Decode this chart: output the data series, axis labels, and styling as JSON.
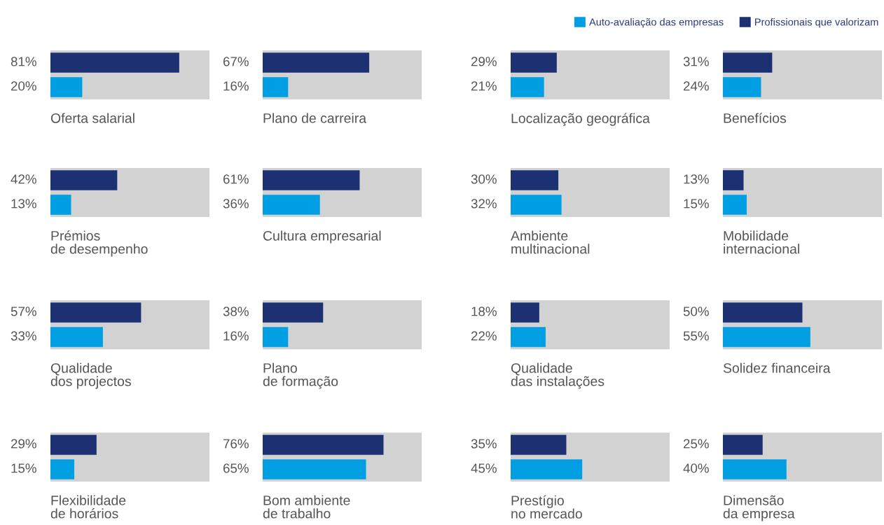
{
  "chart_data": [
    {
      "type": "bar",
      "orientation": "horizontal",
      "xlabel": "Oferta salarial",
      "categories": [
        null
      ],
      "xlim": [
        0,
        100
      ],
      "series": [
        {
          "color": "#1d3072",
          "values": [
            81
          ],
          "value_labels": [
            "81%"
          ]
        },
        {
          "color": "#009fe3",
          "values": [
            20
          ],
          "value_labels": [
            "20%"
          ]
        }
      ]
    },
    {
      "type": "bar",
      "orientation": "horizontal",
      "xlabel": "Plano de carreira",
      "categories": [
        null
      ],
      "xlim": [
        0,
        100
      ],
      "series": [
        {
          "color": "#1d3072",
          "values": [
            67
          ],
          "value_labels": [
            "67%"
          ]
        },
        {
          "color": "#009fe3",
          "values": [
            16
          ],
          "value_labels": [
            "16%"
          ]
        }
      ]
    },
    {
      "type": "bar",
      "orientation": "horizontal",
      "xlabel": "Localização geográfica",
      "categories": [
        null
      ],
      "xlim": [
        0,
        100
      ],
      "legend": "top right",
      "series": [
        {
          "name": "Profissionais que valorizam",
          "color": "#1d3072",
          "values": [
            29
          ],
          "value_labels": [
            "29%"
          ]
        },
        {
          "name": "Auto-avaliação das empresas",
          "color": "#009fe3",
          "values": [
            21
          ],
          "value_labels": [
            "21%"
          ]
        }
      ]
    },
    {
      "type": "bar",
      "orientation": "horizontal",
      "xlabel": "Benefícios",
      "categories": [
        null
      ],
      "xlim": [
        0,
        100
      ],
      "series": [
        {
          "color": "#1d3072",
          "values": [
            31
          ],
          "value_labels": [
            "31%"
          ]
        },
        {
          "color": "#009fe3",
          "values": [
            24
          ],
          "value_labels": [
            "24%"
          ]
        }
      ]
    },
    {
      "type": "bar",
      "orientation": "horizontal",
      "xlabel": "Prémios\nde desempenho",
      "categories": [
        null
      ],
      "xlim": [
        0,
        100
      ],
      "series": [
        {
          "color": "#1d3072",
          "values": [
            42
          ],
          "value_labels": [
            "42%"
          ]
        },
        {
          "color": "#009fe3",
          "values": [
            13
          ],
          "value_labels": [
            "13%"
          ]
        }
      ]
    },
    {
      "type": "bar",
      "orientation": "horizontal",
      "xlabel": "Cultura empresarial",
      "categories": [
        null
      ],
      "xlim": [
        0,
        100
      ],
      "series": [
        {
          "color": "#1d3072",
          "values": [
            61
          ],
          "value_labels": [
            "61%"
          ]
        },
        {
          "color": "#009fe3",
          "values": [
            36
          ],
          "value_labels": [
            "36%"
          ]
        }
      ]
    },
    {
      "type": "bar",
      "orientation": "horizontal",
      "xlabel": "Ambiente\nmultinacional",
      "categories": [
        null
      ],
      "xlim": [
        0,
        100
      ],
      "series": [
        {
          "color": "#1d3072",
          "values": [
            30
          ],
          "value_labels": [
            "30%"
          ]
        },
        {
          "color": "#009fe3",
          "values": [
            32
          ],
          "value_labels": [
            "32%"
          ]
        }
      ]
    },
    {
      "type": "bar",
      "orientation": "horizontal",
      "xlabel": "Mobilidade\ninternacional",
      "categories": [
        null
      ],
      "xlim": [
        0,
        100
      ],
      "series": [
        {
          "color": "#1d3072",
          "values": [
            13
          ],
          "value_labels": [
            "13%"
          ]
        },
        {
          "color": "#009fe3",
          "values": [
            15
          ],
          "value_labels": [
            "15%"
          ]
        }
      ]
    },
    {
      "type": "bar",
      "orientation": "horizontal",
      "xlabel": "Qualidade\ndos projectos",
      "categories": [
        null
      ],
      "xlim": [
        0,
        100
      ],
      "series": [
        {
          "color": "#1d3072",
          "values": [
            57
          ],
          "value_labels": [
            "57%"
          ]
        },
        {
          "color": "#009fe3",
          "values": [
            33
          ],
          "value_labels": [
            "33%"
          ]
        }
      ]
    },
    {
      "type": "bar",
      "orientation": "horizontal",
      "xlabel": "Plano\nde formação",
      "categories": [
        null
      ],
      "xlim": [
        0,
        100
      ],
      "series": [
        {
          "color": "#1d3072",
          "values": [
            38
          ],
          "value_labels": [
            "38%"
          ]
        },
        {
          "color": "#009fe3",
          "values": [
            16
          ],
          "value_labels": [
            "16%"
          ]
        }
      ]
    },
    {
      "type": "bar",
      "orientation": "horizontal",
      "xlabel": "Qualidade\ndas instalações",
      "categories": [
        null
      ],
      "xlim": [
        0,
        100
      ],
      "series": [
        {
          "color": "#1d3072",
          "values": [
            18
          ],
          "value_labels": [
            "18%"
          ]
        },
        {
          "color": "#009fe3",
          "values": [
            22
          ],
          "value_labels": [
            "22%"
          ]
        }
      ]
    },
    {
      "type": "bar",
      "orientation": "horizontal",
      "xlabel": "Solidez financeira",
      "categories": [
        null
      ],
      "xlim": [
        0,
        100
      ],
      "series": [
        {
          "color": "#1d3072",
          "values": [
            50
          ],
          "value_labels": [
            "50%"
          ]
        },
        {
          "color": "#009fe3",
          "values": [
            55
          ],
          "value_labels": [
            "55%"
          ]
        }
      ]
    },
    {
      "type": "bar",
      "orientation": "horizontal",
      "xlabel": "Flexibilidade\nde horários",
      "categories": [
        null
      ],
      "xlim": [
        0,
        100
      ],
      "series": [
        {
          "color": "#1d3072",
          "values": [
            29
          ],
          "value_labels": [
            "29%"
          ]
        },
        {
          "color": "#009fe3",
          "values": [
            15
          ],
          "value_labels": [
            "15%"
          ]
        }
      ]
    },
    {
      "type": "bar",
      "orientation": "horizontal",
      "xlabel": "Bom ambiente\nde trabalho",
      "categories": [
        null
      ],
      "xlim": [
        0,
        100
      ],
      "series": [
        {
          "color": "#1d3072",
          "values": [
            76
          ],
          "value_labels": [
            "76%"
          ]
        },
        {
          "color": "#009fe3",
          "values": [
            65
          ],
          "value_labels": [
            "65%"
          ]
        }
      ]
    },
    {
      "type": "bar",
      "orientation": "horizontal",
      "xlabel": "Prestígio\nno mercado",
      "categories": [
        null
      ],
      "xlim": [
        0,
        100
      ],
      "series": [
        {
          "color": "#1d3072",
          "values": [
            35
          ],
          "value_labels": [
            "35%"
          ]
        },
        {
          "color": "#009fe3",
          "values": [
            45
          ],
          "value_labels": [
            "45%"
          ]
        }
      ]
    },
    {
      "type": "bar",
      "orientation": "horizontal",
      "xlabel": "Dimensão\nda empresa",
      "categories": [
        null
      ],
      "xlim": [
        0,
        100
      ],
      "series": [
        {
          "color": "#1d3072",
          "values": [
            25
          ],
          "value_labels": [
            "25%"
          ]
        },
        {
          "color": "#009fe3",
          "values": [
            40
          ],
          "value_labels": [
            "40%"
          ]
        }
      ]
    }
  ]
}
